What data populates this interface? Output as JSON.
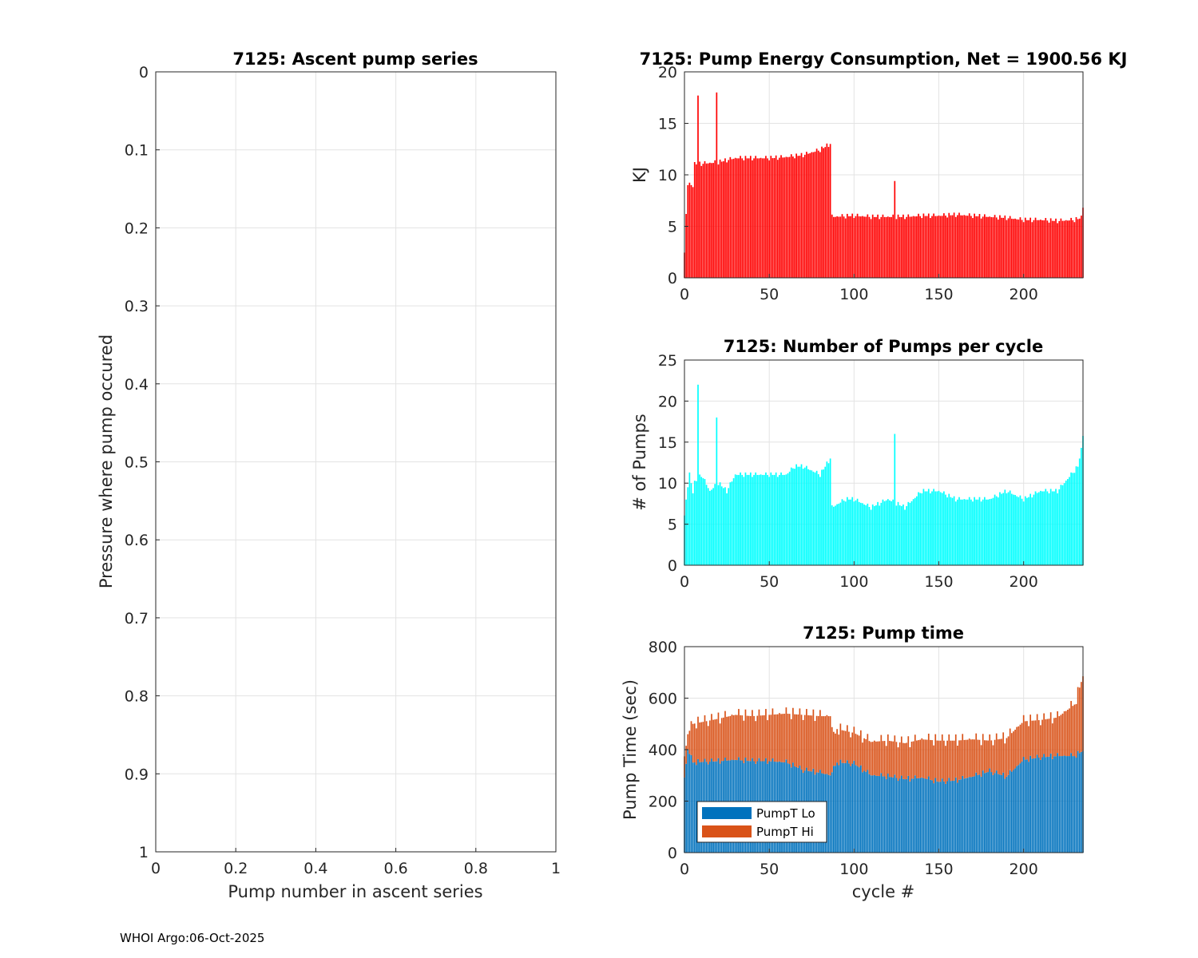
{
  "footer": "WHOI Argo:06-Oct-2025",
  "chart_data": [
    {
      "type": "line",
      "title": "7125: Ascent pump series",
      "xlabel": "Pump number in ascent series",
      "ylabel": "Pressure where pump occured",
      "xlim": [
        0,
        1
      ],
      "ylim": [
        0,
        1
      ],
      "y_reversed": true,
      "grid": true,
      "xticks": [
        "0",
        "0.2",
        "0.4",
        "0.6",
        "0.8",
        "1"
      ],
      "yticks": [
        "0",
        "0.1",
        "0.2",
        "0.3",
        "0.4",
        "0.5",
        "0.6",
        "0.7",
        "0.8",
        "0.9",
        "1"
      ],
      "series": []
    },
    {
      "type": "bar",
      "title": "7125: Pump Energy Consumption,  Net = 1900.56 KJ",
      "xlabel": "",
      "ylabel": "KJ",
      "xlim": [
        0,
        235
      ],
      "ylim": [
        0,
        20
      ],
      "grid": true,
      "xticks": [
        "0",
        "50",
        "100",
        "150",
        "200"
      ],
      "yticks": [
        "0",
        "5",
        "10",
        "15",
        "20"
      ],
      "color": "#ff0000",
      "keypoints": [
        [
          0,
          2.4
        ],
        [
          1,
          6.2
        ],
        [
          2,
          9.0
        ],
        [
          5,
          9.0
        ],
        [
          6,
          11.0
        ],
        [
          20,
          11.2
        ],
        [
          30,
          11.6
        ],
        [
          40,
          11.6
        ],
        [
          50,
          11.6
        ],
        [
          60,
          11.7
        ],
        [
          70,
          11.9
        ],
        [
          80,
          12.4
        ],
        [
          86,
          13.0
        ],
        [
          87,
          5.9
        ],
        [
          100,
          6.0
        ],
        [
          110,
          5.9
        ],
        [
          120,
          5.9
        ],
        [
          130,
          5.9
        ],
        [
          140,
          6.0
        ],
        [
          150,
          6.0
        ],
        [
          160,
          6.1
        ],
        [
          170,
          6.0
        ],
        [
          180,
          5.9
        ],
        [
          190,
          5.8
        ],
        [
          200,
          5.6
        ],
        [
          210,
          5.6
        ],
        [
          220,
          5.5
        ],
        [
          230,
          5.6
        ],
        [
          234,
          5.8
        ],
        [
          235,
          7.0
        ]
      ],
      "spikes": [
        [
          8,
          17.7
        ],
        [
          19,
          18.0
        ],
        [
          124,
          9.4
        ]
      ]
    },
    {
      "type": "bar",
      "title": "7125: Number of Pumps per cycle",
      "xlabel": "",
      "ylabel": "# of Pumps",
      "xlim": [
        0,
        235
      ],
      "ylim": [
        0,
        25
      ],
      "grid": true,
      "xticks": [
        "0",
        "50",
        "100",
        "150",
        "200"
      ],
      "yticks": [
        "0",
        "5",
        "10",
        "15",
        "20",
        "25"
      ],
      "color": "#00ffff",
      "keypoints": [
        [
          0,
          6
        ],
        [
          1,
          8
        ],
        [
          3,
          11
        ],
        [
          5,
          9
        ],
        [
          6,
          10
        ],
        [
          10,
          11
        ],
        [
          15,
          9
        ],
        [
          20,
          10
        ],
        [
          25,
          9
        ],
        [
          30,
          11
        ],
        [
          40,
          11
        ],
        [
          50,
          11
        ],
        [
          60,
          11
        ],
        [
          65,
          12
        ],
        [
          70,
          12
        ],
        [
          80,
          11
        ],
        [
          86,
          13
        ],
        [
          87,
          7
        ],
        [
          95,
          8
        ],
        [
          100,
          8
        ],
        [
          110,
          7
        ],
        [
          120,
          8
        ],
        [
          130,
          7
        ],
        [
          140,
          9
        ],
        [
          150,
          9
        ],
        [
          160,
          8
        ],
        [
          170,
          8
        ],
        [
          180,
          8
        ],
        [
          190,
          9
        ],
        [
          200,
          8
        ],
        [
          210,
          9
        ],
        [
          220,
          9
        ],
        [
          228,
          11
        ],
        [
          232,
          12
        ],
        [
          234,
          14
        ],
        [
          235,
          16
        ]
      ],
      "spikes": [
        [
          8,
          22
        ],
        [
          19,
          18
        ],
        [
          124,
          16
        ]
      ]
    },
    {
      "type": "bar",
      "stacked": true,
      "title": "7125: Pump time",
      "xlabel": "cycle #",
      "ylabel": "Pump Time (sec)",
      "xlim": [
        0,
        235
      ],
      "ylim": [
        0,
        800
      ],
      "grid": true,
      "xticks": [
        "0",
        "50",
        "100",
        "150",
        "200"
      ],
      "yticks": [
        "0",
        "200",
        "400",
        "600",
        "800"
      ],
      "legend": {
        "location": "bottom-left",
        "entries": [
          "PumpT Lo",
          "PumpT Hi"
        ]
      },
      "series": [
        {
          "name": "PumpT Lo",
          "color": "#0072bd",
          "keypoints": [
            [
              0,
              290
            ],
            [
              2,
              400
            ],
            [
              5,
              350
            ],
            [
              20,
              355
            ],
            [
              30,
              360
            ],
            [
              40,
              355
            ],
            [
              50,
              355
            ],
            [
              60,
              350
            ],
            [
              70,
              320
            ],
            [
              80,
              310
            ],
            [
              86,
              300
            ],
            [
              90,
              350
            ],
            [
              100,
              345
            ],
            [
              110,
              300
            ],
            [
              120,
              295
            ],
            [
              130,
              285
            ],
            [
              140,
              290
            ],
            [
              150,
              275
            ],
            [
              160,
              280
            ],
            [
              170,
              295
            ],
            [
              180,
              315
            ],
            [
              190,
              295
            ],
            [
              200,
              360
            ],
            [
              210,
              370
            ],
            [
              220,
              375
            ],
            [
              230,
              375
            ],
            [
              235,
              395
            ]
          ]
        },
        {
          "name": "PumpT Hi",
          "color": "#d95319",
          "keypoints": [
            [
              0,
              80
            ],
            [
              2,
              60
            ],
            [
              5,
              150
            ],
            [
              20,
              165
            ],
            [
              30,
              175
            ],
            [
              40,
              175
            ],
            [
              50,
              180
            ],
            [
              60,
              190
            ],
            [
              70,
              215
            ],
            [
              80,
              220
            ],
            [
              86,
              230
            ],
            [
              88,
              120
            ],
            [
              90,
              130
            ],
            [
              100,
              120
            ],
            [
              110,
              130
            ],
            [
              120,
              140
            ],
            [
              130,
              140
            ],
            [
              140,
              150
            ],
            [
              150,
              160
            ],
            [
              160,
              155
            ],
            [
              170,
              145
            ],
            [
              180,
              120
            ],
            [
              190,
              150
            ],
            [
              200,
              150
            ],
            [
              210,
              145
            ],
            [
              220,
              150
            ],
            [
              230,
              200
            ],
            [
              235,
              290
            ]
          ]
        }
      ]
    }
  ]
}
